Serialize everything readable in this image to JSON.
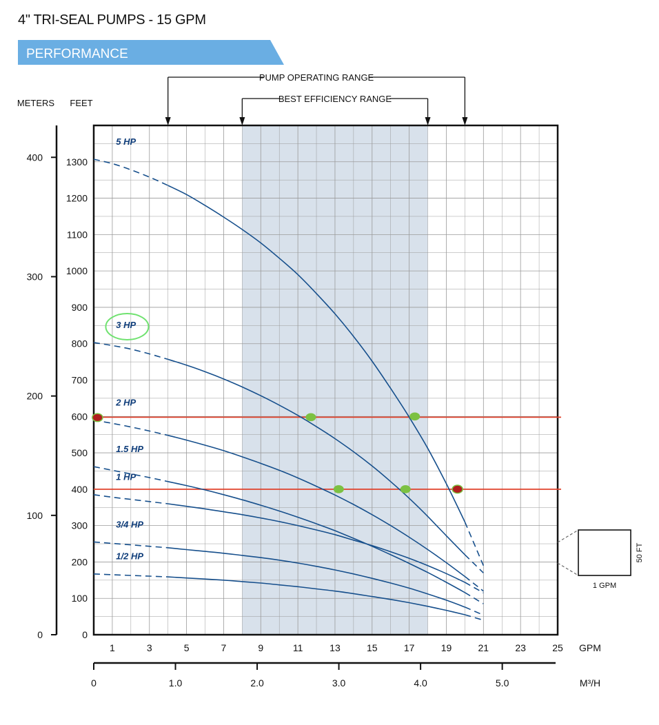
{
  "page": {
    "title": "4\" TRI-SEAL PUMPS - 15 GPM",
    "section": "PERFORMANCE"
  },
  "colors": {
    "banner": "#6aaee3",
    "curve": "#164f8c",
    "reference_line": "#e0402a",
    "efficiency_band": "#d8e1eb",
    "marker_green": "#7cc142",
    "marker_red": "#b01e1e",
    "highlight_circle": "#6fe26f"
  },
  "chart_data": {
    "type": "line",
    "xlabel": "GPM",
    "x2label": "M³/H",
    "y_left_label": "METERS",
    "y_right_label": "FEET",
    "xlim": [
      0,
      25
    ],
    "ylim": [
      0,
      1400
    ],
    "x_ticks": [
      1,
      3,
      5,
      7,
      9,
      11,
      13,
      15,
      17,
      19,
      21,
      23,
      25
    ],
    "y_ticks_feet": [
      0,
      100,
      200,
      300,
      400,
      500,
      600,
      700,
      800,
      900,
      1000,
      1100,
      1200,
      1300
    ],
    "y_ticks_meters": [
      0,
      100,
      200,
      300,
      400
    ],
    "x2_ticks": [
      "0",
      "1.0",
      "2.0",
      "3.0",
      "4.0",
      "5.0"
    ],
    "grid": true,
    "pump_operating_range": {
      "label": "PUMP OPERATING RANGE",
      "from": 4,
      "to": 20
    },
    "best_efficiency_range": {
      "label": "BEST EFFICIENCY RANGE",
      "from": 8,
      "to": 18
    },
    "series": [
      {
        "name": "5 HP",
        "x": [
          0,
          1,
          2,
          3,
          4,
          5,
          6,
          7,
          8,
          9,
          10,
          11,
          12,
          13,
          14,
          15,
          16,
          17,
          18,
          19,
          20,
          21
        ],
        "y": [
          1307,
          1295,
          1278,
          1258,
          1235,
          1210,
          1180,
          1148,
          1114,
          1077,
          1035,
          990,
          938,
          882,
          820,
          752,
          677,
          598,
          512,
          415,
          310,
          190
        ],
        "dashed_to": 4,
        "dashed_from": 20
      },
      {
        "name": "3 HP",
        "x": [
          0,
          1,
          2,
          3,
          4,
          5,
          6,
          7,
          8,
          9,
          10,
          11,
          12,
          13,
          14,
          15,
          16,
          17,
          18,
          19,
          20,
          21
        ],
        "y": [
          803,
          795,
          785,
          772,
          757,
          741,
          723,
          703,
          681,
          657,
          631,
          603,
          572,
          539,
          503,
          464,
          421,
          375,
          325,
          272,
          220,
          170
        ],
        "dashed_to": 4,
        "dashed_from": 20
      },
      {
        "name": "2 HP",
        "x": [
          0,
          1,
          2,
          3,
          4,
          5,
          6,
          7,
          8,
          9,
          10,
          11,
          12,
          13,
          14,
          15,
          16,
          17,
          18,
          19,
          20,
          21
        ],
        "y": [
          590,
          581,
          571,
          560,
          548,
          535,
          521,
          506,
          489,
          471,
          452,
          431,
          408,
          384,
          358,
          330,
          300,
          268,
          234,
          198,
          160,
          120
        ],
        "dashed_to": 4,
        "dashed_from": 20
      },
      {
        "name": "1.5 HP",
        "x": [
          0,
          1,
          2,
          3,
          4,
          5,
          6,
          7,
          8,
          9,
          10,
          11,
          12,
          13,
          14,
          15,
          16,
          17,
          18,
          19,
          20,
          21
        ],
        "y": [
          462,
          452,
          442,
          432,
          421,
          410,
          398,
          385,
          371,
          356,
          340,
          323,
          305,
          286,
          265,
          243,
          220,
          196,
          171,
          144,
          116,
          85
        ],
        "dashed_to": 4,
        "dashed_from": 20
      },
      {
        "name": "1 HP",
        "x": [
          0,
          1,
          2,
          3,
          4,
          5,
          6,
          7,
          8,
          9,
          10,
          11,
          12,
          13,
          14,
          15,
          16,
          17,
          18,
          19,
          20,
          21
        ],
        "y": [
          385,
          378,
          372,
          366,
          360,
          353,
          346,
          338,
          330,
          321,
          311,
          300,
          288,
          275,
          260,
          245,
          228,
          210,
          190,
          168,
          144,
          115
        ],
        "dashed_to": 4,
        "dashed_from": 20
      },
      {
        "name": "3/4 HP",
        "x": [
          0,
          1,
          2,
          3,
          4,
          5,
          6,
          7,
          8,
          9,
          10,
          11,
          12,
          13,
          14,
          15,
          16,
          17,
          18,
          19,
          20,
          21
        ],
        "y": [
          255,
          251,
          247,
          243,
          239,
          234,
          229,
          224,
          218,
          212,
          205,
          197,
          188,
          178,
          167,
          155,
          142,
          128,
          112,
          95,
          76,
          54
        ],
        "dashed_to": 4,
        "dashed_from": 20
      },
      {
        "name": "1/2 HP",
        "x": [
          0,
          1,
          2,
          3,
          4,
          5,
          6,
          7,
          8,
          9,
          10,
          11,
          12,
          13,
          14,
          15,
          16,
          17,
          18,
          19,
          20,
          21
        ],
        "y": [
          167,
          165,
          163,
          161,
          159,
          156,
          153,
          150,
          146,
          142,
          137,
          132,
          126,
          120,
          113,
          105,
          97,
          88,
          78,
          67,
          55,
          40
        ],
        "dashed_to": 4,
        "dashed_from": 20
      }
    ],
    "reference_lines": [
      {
        "y": 598
      },
      {
        "y": 400
      }
    ],
    "markers": [
      {
        "x": 0.2,
        "y": 597,
        "color": "red"
      },
      {
        "x": 11.7,
        "y": 598,
        "color": "green"
      },
      {
        "x": 17.3,
        "y": 600,
        "color": "green"
      },
      {
        "x": 13.2,
        "y": 400,
        "color": "green"
      },
      {
        "x": 16.8,
        "y": 400,
        "color": "green"
      },
      {
        "x": 19.6,
        "y": 400,
        "color": "red"
      }
    ],
    "highlighted_series": "3 HP",
    "scale_box": {
      "width_label": "1 GPM",
      "height_label": "50 FT"
    }
  }
}
